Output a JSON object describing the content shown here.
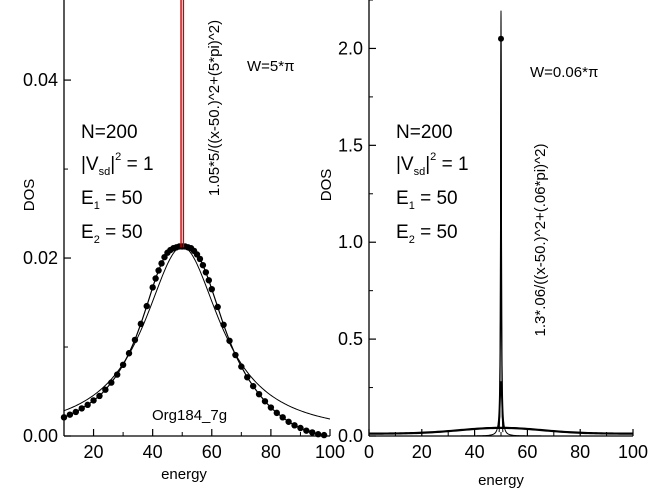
{
  "chart_data": [
    {
      "type": "scatter",
      "xlabel": "energy",
      "ylabel": "DOS",
      "xlim": [
        10,
        100
      ],
      "ylim": [
        0,
        0.049
      ],
      "x_ticks": [
        20,
        40,
        60,
        80,
        100
      ],
      "y_ticks": [
        0.0,
        0.02,
        0.04
      ],
      "y_tick_labels": [
        "0.00",
        "0.02",
        "0.04"
      ],
      "annotations": {
        "n": "N=200",
        "v_pre": "|V",
        "v_sub": "sd",
        "v_post": "|",
        "v_sup": "2",
        "v_val": " = 1",
        "e1_pre": "E",
        "e1_sub": "1",
        "e1_val": " = 50",
        "e2_pre": "E",
        "e2_sub": "2",
        "e2_val": " = 50",
        "width": "W=5*π",
        "formula": "1.05*5/((x-50.)^2+(5*pi)^2)",
        "label": "Org184_7g"
      },
      "series": [
        {
          "role": "data points",
          "color": "#000000",
          "x": [
            10,
            12,
            14,
            16,
            18,
            20,
            22,
            24,
            26,
            28,
            30,
            32,
            34,
            36,
            38,
            40,
            41,
            42,
            43,
            44,
            45,
            46,
            47,
            48,
            49,
            50,
            51,
            52,
            53,
            54,
            55,
            56,
            57,
            58,
            59,
            60,
            62,
            64,
            66,
            68,
            70,
            72,
            74,
            76,
            78,
            80,
            82,
            84,
            86,
            88,
            90,
            92,
            94,
            96,
            98
          ],
          "y": [
            0.0021,
            0.0024,
            0.0027,
            0.0031,
            0.0035,
            0.004,
            0.0045,
            0.0052,
            0.006,
            0.0069,
            0.008,
            0.0093,
            0.0108,
            0.0126,
            0.0146,
            0.0167,
            0.0177,
            0.0186,
            0.0194,
            0.0201,
            0.0206,
            0.0209,
            0.0211,
            0.0212,
            0.0213,
            0.0213,
            0.0213,
            0.0212,
            0.0211,
            0.0208,
            0.0204,
            0.0199,
            0.0192,
            0.0184,
            0.0175,
            0.0165,
            0.0145,
            0.0125,
            0.0107,
            0.0091,
            0.0078,
            0.0066,
            0.0056,
            0.0047,
            0.0039,
            0.0032,
            0.0026,
            0.0021,
            0.0016,
            0.0012,
            0.0009,
            0.0006,
            0.0004,
            0.0002,
            0.0001
          ]
        },
        {
          "role": "lorentzian fit",
          "color": "#000000",
          "formula": "1.05*5/((x-50.)^2+(5*pi)^2)"
        },
        {
          "role": "center marker",
          "color": "#cc0000",
          "x": [
            49.6,
            50.4
          ]
        }
      ]
    },
    {
      "type": "line",
      "xlabel": "energy",
      "ylabel": "DOS",
      "xlim": [
        0,
        100
      ],
      "ylim": [
        0,
        2.25
      ],
      "x_ticks": [
        0,
        20,
        40,
        60,
        80,
        100
      ],
      "y_ticks": [
        0.0,
        0.5,
        1.0,
        1.5,
        2.0
      ],
      "y_tick_labels": [
        "0.0",
        "0.5",
        "1.0",
        "1.5",
        "2.0"
      ],
      "annotations": {
        "n": "N=200",
        "v_pre": "|V",
        "v_sub": "sd",
        "v_post": "|",
        "v_sup": "2",
        "v_val": " = 1",
        "e1_pre": "E",
        "e1_sub": "1",
        "e1_val": " = 50",
        "e2_pre": "E",
        "e2_sub": "2",
        "e2_val": " = 50",
        "width": "W=0.06*π",
        "formula": "1.3*.06/((x-50.)^2+(.06*pi)^2)"
      },
      "series": [
        {
          "role": "data peak",
          "color": "#000000",
          "x": [
            49.0,
            49.5,
            49.8,
            49.9,
            50.0,
            50.1,
            50.2,
            50.5,
            51.0
          ],
          "y": [
            0.04,
            0.1,
            0.6,
            1.5,
            2.05,
            1.5,
            0.6,
            0.1,
            0.04
          ]
        },
        {
          "role": "lorentzian fit",
          "color": "#000000",
          "formula": "1.3*.06/((x-50.)^2+(.06*pi)^2)"
        }
      ]
    }
  ]
}
